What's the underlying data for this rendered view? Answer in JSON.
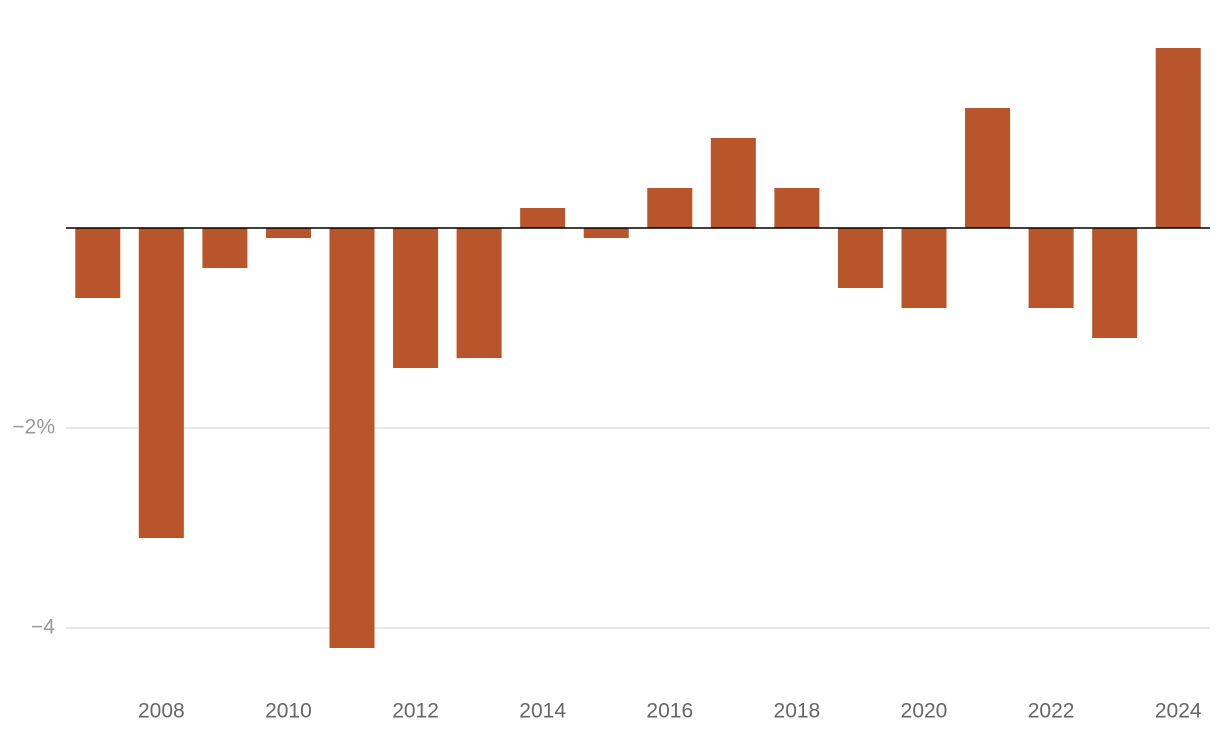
{
  "chart_data": {
    "type": "bar",
    "categories": [
      null,
      "2008",
      null,
      "2010",
      null,
      "2012",
      null,
      "2014",
      null,
      "2016",
      null,
      "2018",
      null,
      "2020",
      null,
      "2022",
      null,
      "2024"
    ],
    "values": [
      -0.7,
      -3.1,
      -0.4,
      -0.1,
      -4.2,
      -1.4,
      -1.3,
      0.2,
      -0.1,
      0.4,
      0.9,
      0.4,
      -0.6,
      -0.8,
      1.2,
      -0.8,
      -1.1,
      1.8
    ],
    "color": "#b8552a",
    "ylim": [
      -4.4,
      2
    ],
    "yticks": [
      {
        "value": -4,
        "label": "−4"
      },
      {
        "value": -2,
        "label": "−2%"
      }
    ],
    "grid": true
  }
}
